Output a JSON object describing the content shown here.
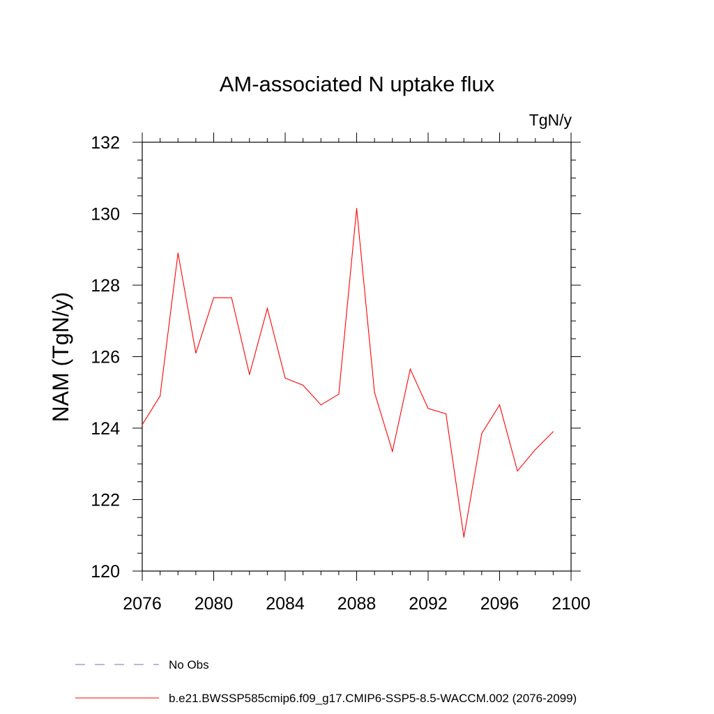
{
  "chart_data": {
    "type": "line",
    "title": "AM-associated N uptake flux",
    "units_label": "TgN/y",
    "ylabel": "NAM  (TgN/y)",
    "xlabel": "",
    "xlim": [
      2076,
      2100
    ],
    "ylim": [
      120,
      132
    ],
    "x_ticks": [
      2076,
      2080,
      2084,
      2088,
      2092,
      2096,
      2100
    ],
    "y_ticks": [
      120,
      122,
      124,
      126,
      128,
      130,
      132
    ],
    "grid": false,
    "legend_position": "bottom",
    "series": [
      {
        "name": "b.e21.BWSSP585cmip6.f09_g17.CMIP6-SSP5-8.5-WACCM.002 (2076-2099)",
        "color": "#ff0000",
        "style": "solid",
        "x": [
          2076,
          2077,
          2078,
          2079,
          2080,
          2081,
          2082,
          2083,
          2084,
          2085,
          2086,
          2087,
          2088,
          2089,
          2090,
          2091,
          2092,
          2093,
          2094,
          2095,
          2096,
          2097,
          2098,
          2099
        ],
        "y": [
          124.1,
          124.9,
          128.9,
          126.1,
          127.65,
          127.65,
          125.5,
          127.35,
          125.4,
          125.2,
          124.65,
          124.95,
          130.15,
          125.0,
          123.35,
          125.65,
          124.55,
          124.4,
          120.95,
          123.85,
          124.65,
          122.8,
          123.4,
          123.9
        ]
      }
    ],
    "legend": [
      {
        "label": "No Obs",
        "color": "#7b6fb0",
        "style": "dashed"
      },
      {
        "label": "b.e21.BWSSP585cmip6.f09_g17.CMIP6-SSP5-8.5-WACCM.002 (2076-2099)",
        "color": "#ff0000",
        "style": "solid"
      }
    ]
  }
}
